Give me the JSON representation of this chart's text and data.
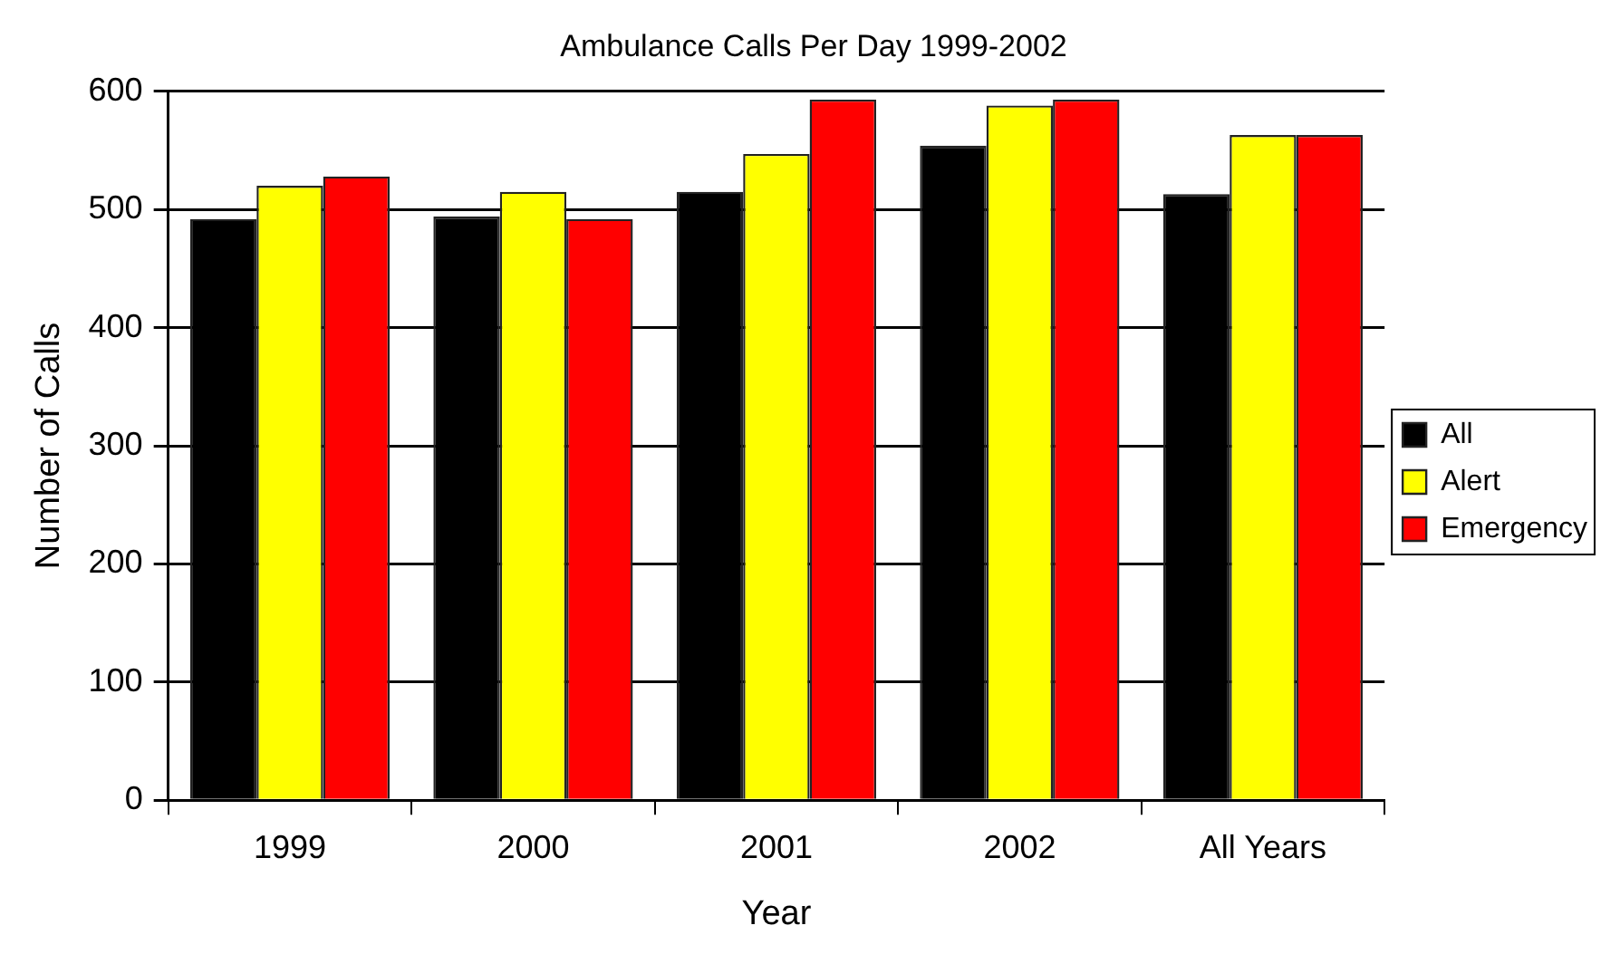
{
  "chart_data": {
    "type": "bar",
    "title": "Ambulance Calls Per Day 1999-2002",
    "xlabel": "Year",
    "ylabel": "Number of Calls",
    "categories": [
      "1999",
      "2000",
      "2001",
      "2002",
      "All Years"
    ],
    "series": [
      {
        "name": "All",
        "color": "#000000",
        "values": [
          492,
          494,
          515,
          554,
          513
        ]
      },
      {
        "name": "Alert",
        "color": "#ffff00",
        "values": [
          520,
          515,
          547,
          588,
          563
        ]
      },
      {
        "name": "Emergency",
        "color": "#ff0000",
        "values": [
          528,
          492,
          593,
          593,
          563
        ]
      }
    ],
    "ylim": [
      0,
      600
    ],
    "yticks": [
      0,
      100,
      200,
      300,
      400,
      500,
      600
    ],
    "grid": "y",
    "legend": "right"
  }
}
